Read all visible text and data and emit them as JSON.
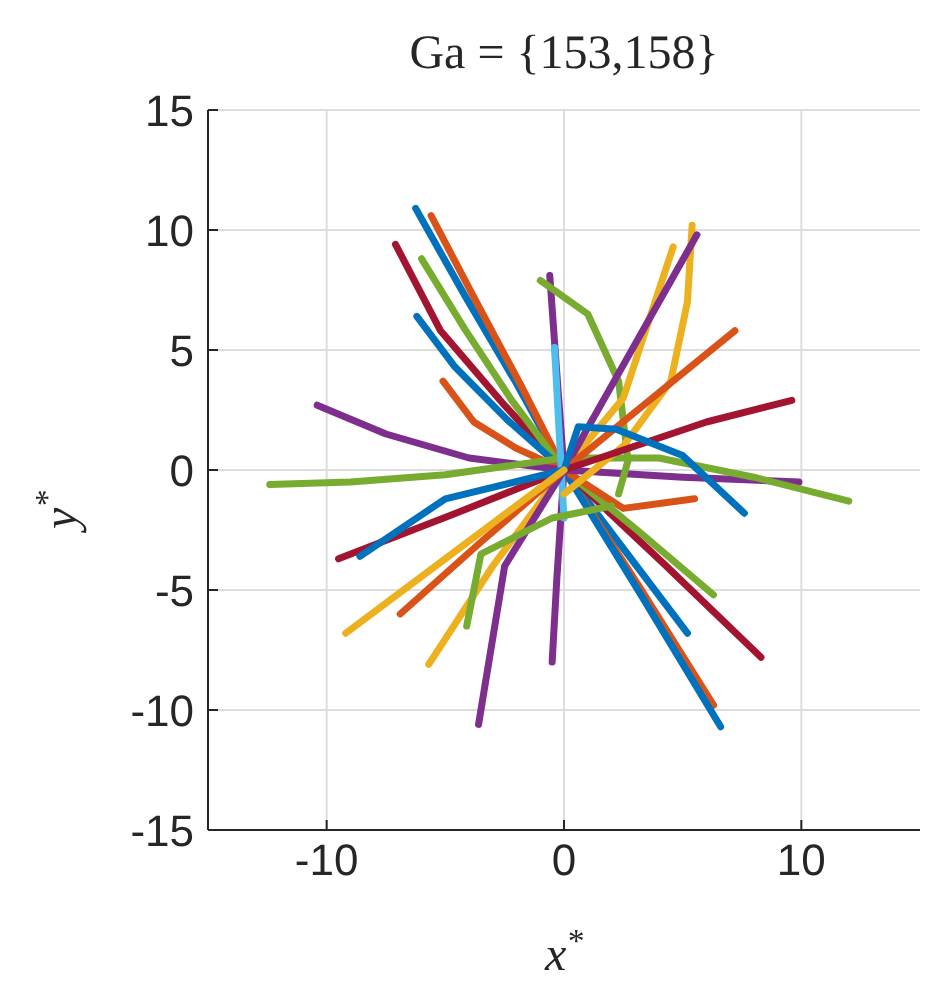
{
  "chart_data": {
    "type": "line",
    "title": "Ga = {153,158}",
    "xlabel": "x$^{*}$",
    "ylabel": "y$^{*}$",
    "xlim": [
      -15,
      15
    ],
    "xticks": [
      -10,
      0,
      10
    ],
    "ylim": [
      -15,
      15
    ],
    "yticks": [
      -15,
      -10,
      -5,
      0,
      5,
      10,
      15
    ],
    "grid": true,
    "series": [
      {
        "color": "#0072bd",
        "x": [
          -6.25,
          -4.2,
          -2,
          0,
          2.6,
          5.2
        ],
        "values": [
          10.9,
          7.3,
          3.6,
          0,
          -3.4,
          -6.8
        ]
      },
      {
        "color": "#d95319",
        "x": [
          -5.6,
          -3.8,
          -1.8,
          0,
          3.2,
          6.3
        ],
        "values": [
          10.6,
          7.2,
          3.5,
          0,
          -4.9,
          -9.8
        ]
      },
      {
        "color": "#a2142f",
        "x": [
          -7.1,
          -5.2,
          -2.6,
          0,
          4.2,
          8.3
        ],
        "values": [
          9.4,
          5.8,
          2.8,
          0,
          -3.9,
          -7.8
        ]
      },
      {
        "color": "#77ac30",
        "x": [
          -6,
          -4.2,
          -2.2,
          0,
          3.2,
          6.3
        ],
        "values": [
          8.8,
          5.9,
          2.9,
          0,
          -2.6,
          -5.2
        ]
      },
      {
        "color": "#0072bd",
        "x": [
          -6.2,
          -4.6,
          -2.4,
          0,
          3.3,
          6.6
        ],
        "values": [
          6.4,
          4.3,
          2.1,
          0,
          -5.3,
          -10.7
        ]
      },
      {
        "color": "#d95319",
        "x": [
          -5.1,
          -3.8,
          -2,
          0,
          2.5,
          5.5
        ],
        "values": [
          3.7,
          2,
          0.9,
          0,
          -1.6,
          -1.2
        ]
      },
      {
        "color": "#7e2f8e",
        "x": [
          -10.4,
          -7.5,
          -4,
          0,
          5,
          9.9
        ],
        "values": [
          2.7,
          1.5,
          0.5,
          0,
          -0.3,
          -0.5
        ]
      },
      {
        "color": "#77ac30",
        "x": [
          -12.4,
          -9,
          -5,
          0,
          4,
          8,
          12
        ],
        "values": [
          -0.6,
          -0.5,
          -0.2,
          0.5,
          0.5,
          -0.3,
          -1.3
        ]
      },
      {
        "color": "#7e2f8e",
        "x": [
          -0.6,
          -0.3,
          0,
          -0.3,
          -0.5
        ],
        "values": [
          8.1,
          4,
          0,
          -4.5,
          -8
        ]
      },
      {
        "color": "#77ac30",
        "x": [
          -1,
          1,
          2.3,
          2.7,
          2.3
        ],
        "values": [
          7.9,
          6.5,
          3.7,
          0.4,
          -1
        ]
      },
      {
        "color": "#4dbeee",
        "x": [
          0,
          -0.2,
          -0.4
        ],
        "values": [
          -2,
          1.5,
          5.1
        ]
      },
      {
        "color": "#edb120",
        "x": [
          0,
          2.5,
          4.5,
          5.2,
          5.4
        ],
        "values": [
          -1,
          1,
          3.7,
          7,
          10.2
        ]
      },
      {
        "color": "#edb120",
        "x": [
          -5.7,
          -3,
          0,
          2.5,
          4.6
        ],
        "values": [
          -8.1,
          -4,
          0,
          3,
          9.3
        ]
      },
      {
        "color": "#7e2f8e",
        "x": [
          -3.6,
          -2.5,
          0,
          2.8,
          5.6
        ],
        "values": [
          -10.6,
          -4,
          0,
          4.9,
          9.8
        ]
      },
      {
        "color": "#d95319",
        "x": [
          -6.9,
          -3.5,
          0,
          3.6,
          7.2
        ],
        "values": [
          -6,
          -3,
          0,
          2.9,
          5.8
        ]
      },
      {
        "color": "#a2142f",
        "x": [
          -9.5,
          -4.8,
          0,
          3,
          6,
          9.6
        ],
        "values": [
          -3.7,
          -1.9,
          0,
          1,
          2,
          2.9
        ]
      },
      {
        "color": "#0072bd",
        "x": [
          0,
          0.6,
          2.2,
          5,
          7.6
        ],
        "values": [
          0,
          1.8,
          1.7,
          0.6,
          -1.8
        ]
      },
      {
        "color": "#0072bd",
        "x": [
          0,
          -5,
          -8.6
        ],
        "values": [
          0,
          -1.2,
          -3.6
        ]
      },
      {
        "color": "#edb120",
        "x": [
          0,
          -4.6,
          -9.2
        ],
        "values": [
          0,
          -3.4,
          -6.8
        ]
      },
      {
        "color": "#77ac30",
        "x": [
          2,
          -0.5,
          -3.5,
          -4.1
        ],
        "values": [
          -1.5,
          -2,
          -3.5,
          -6.5
        ]
      }
    ]
  }
}
